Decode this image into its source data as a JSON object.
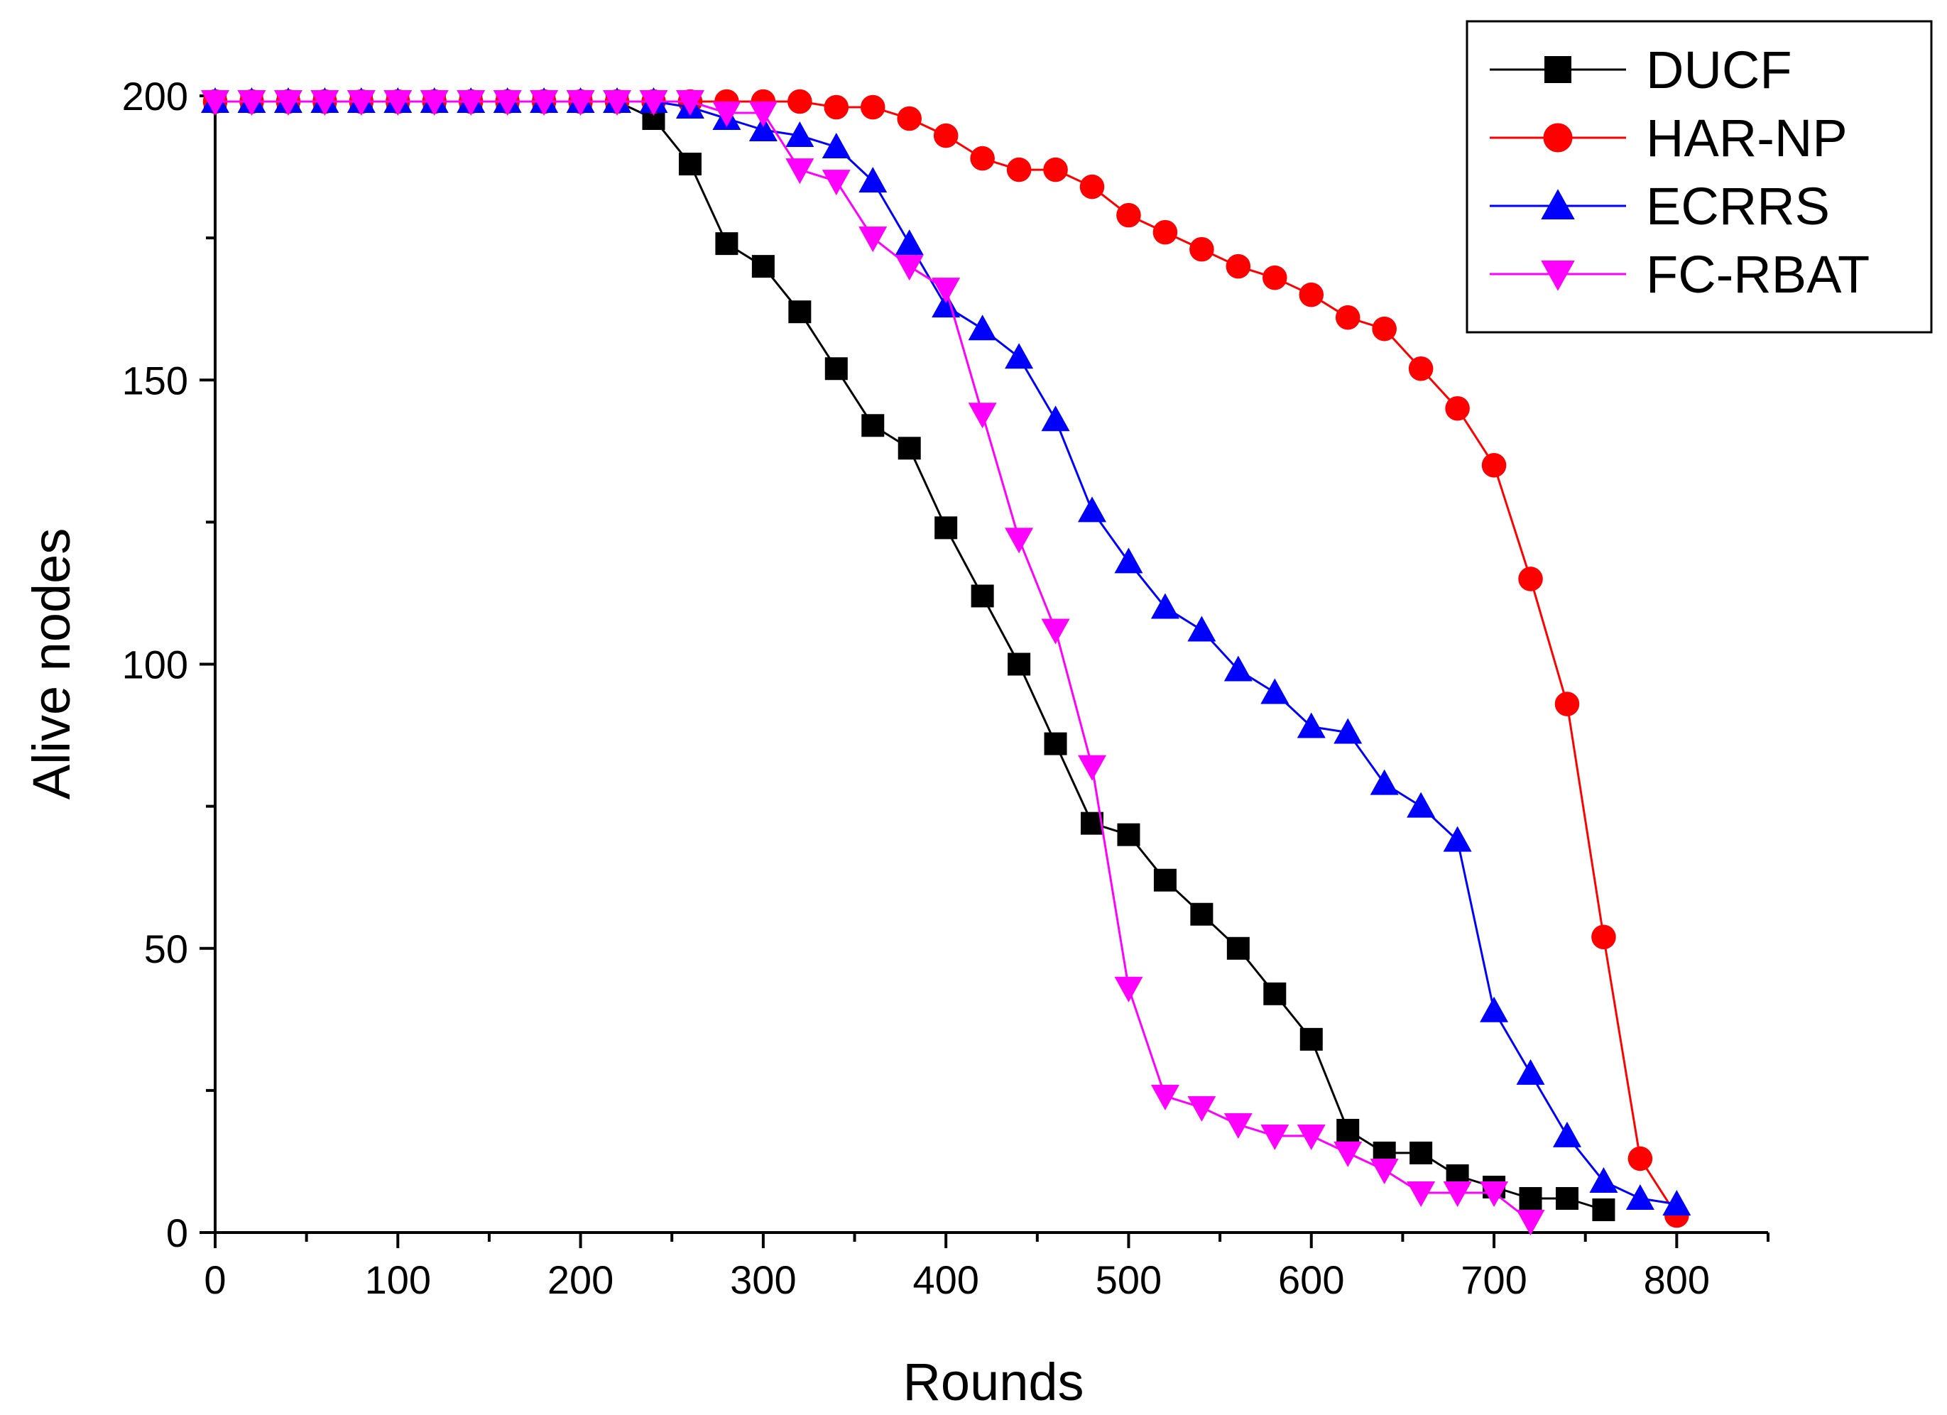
{
  "chart_data": {
    "type": "line",
    "title": "",
    "xlabel": "Rounds",
    "ylabel": "Alive nodes",
    "xlim": [
      0,
      850
    ],
    "ylim": [
      0,
      200
    ],
    "xticks": [
      0,
      100,
      200,
      300,
      400,
      500,
      600,
      700,
      800
    ],
    "yticks": [
      0,
      50,
      100,
      150,
      200
    ],
    "legend_position": "top-right",
    "series": [
      {
        "name": "DUCF",
        "color": "#000000",
        "marker": "square",
        "x": [
          0,
          20,
          40,
          60,
          80,
          100,
          120,
          140,
          160,
          180,
          200,
          220,
          240,
          260,
          280,
          300,
          320,
          340,
          360,
          380,
          400,
          420,
          440,
          460,
          480,
          500,
          520,
          540,
          560,
          580,
          600,
          620,
          640,
          660,
          680,
          700,
          720,
          740,
          760
        ],
        "y": [
          199,
          199,
          199,
          199,
          199,
          199,
          199,
          199,
          199,
          199,
          199,
          199,
          196,
          188,
          174,
          170,
          162,
          152,
          142,
          138,
          124,
          112,
          100,
          86,
          72,
          70,
          62,
          56,
          50,
          42,
          34,
          18,
          14,
          14,
          10,
          8,
          6,
          6,
          4
        ]
      },
      {
        "name": "HAR-NP",
        "color": "#ff0000",
        "marker": "circle",
        "x": [
          0,
          20,
          40,
          60,
          80,
          100,
          120,
          140,
          160,
          180,
          200,
          220,
          240,
          260,
          280,
          300,
          320,
          340,
          360,
          380,
          400,
          420,
          440,
          460,
          480,
          500,
          520,
          540,
          560,
          580,
          600,
          620,
          640,
          660,
          680,
          700,
          720,
          740,
          760,
          780,
          800
        ],
        "y": [
          199,
          199,
          199,
          199,
          199,
          199,
          199,
          199,
          199,
          199,
          199,
          199,
          199,
          199,
          199,
          199,
          199,
          198,
          198,
          196,
          193,
          189,
          187,
          187,
          184,
          179,
          176,
          173,
          170,
          168,
          165,
          161,
          159,
          152,
          145,
          135,
          115,
          93,
          52,
          13,
          3
        ]
      },
      {
        "name": "ECRRS",
        "color": "#0000ff",
        "marker": "triangle-up",
        "x": [
          0,
          20,
          40,
          60,
          80,
          100,
          120,
          140,
          160,
          180,
          200,
          220,
          240,
          260,
          280,
          300,
          320,
          340,
          360,
          380,
          400,
          420,
          440,
          460,
          480,
          500,
          520,
          540,
          560,
          580,
          600,
          620,
          640,
          660,
          680,
          700,
          720,
          740,
          760,
          780,
          800
        ],
        "y": [
          199,
          199,
          199,
          199,
          199,
          199,
          199,
          199,
          199,
          199,
          199,
          199,
          199,
          198,
          196,
          194,
          193,
          191,
          185,
          174,
          163,
          159,
          154,
          143,
          127,
          118,
          110,
          106,
          99,
          95,
          89,
          88,
          79,
          75,
          69,
          39,
          28,
          17,
          9,
          6,
          5
        ]
      },
      {
        "name": "FC-RBAT",
        "color": "#ff00ff",
        "marker": "triangle-down",
        "x": [
          0,
          20,
          40,
          60,
          80,
          100,
          120,
          140,
          160,
          180,
          200,
          220,
          240,
          260,
          280,
          300,
          320,
          340,
          360,
          380,
          400,
          420,
          440,
          460,
          480,
          500,
          520,
          540,
          560,
          580,
          600,
          620,
          640,
          660,
          680,
          700,
          720
        ],
        "y": [
          199,
          199,
          199,
          199,
          199,
          199,
          199,
          199,
          199,
          199,
          199,
          199,
          199,
          199,
          197,
          197,
          187,
          185,
          175,
          170,
          166,
          144,
          122,
          106,
          82,
          43,
          24,
          22,
          19,
          17,
          17,
          14,
          11,
          7,
          7,
          7,
          2
        ]
      }
    ]
  }
}
